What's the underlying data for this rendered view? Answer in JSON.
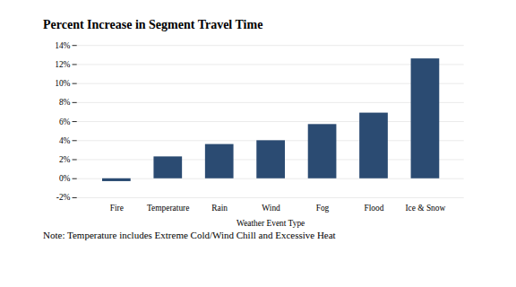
{
  "chart_data": {
    "type": "bar",
    "title": "Percent Increase in Segment Travel Time",
    "xlabel": "Weather Event Type",
    "note": "Note: Temperature includes Extreme Cold/Wind Chill and Excessive Heat",
    "categories": [
      "Fire",
      "Temperature",
      "Rain",
      "Wind",
      "Fog",
      "Flood",
      "Ice & Snow"
    ],
    "values": [
      -0.3,
      2.3,
      3.6,
      4.0,
      5.7,
      6.9,
      12.6
    ],
    "color": "#2b4b72",
    "ylim": [
      -2,
      14
    ],
    "yticks": [
      {
        "value": -2,
        "label": "-2%"
      },
      {
        "value": 0,
        "label": "0%"
      },
      {
        "value": 2,
        "label": "2%"
      },
      {
        "value": 4,
        "label": "4%"
      },
      {
        "value": 6,
        "label": "6%"
      },
      {
        "value": 8,
        "label": "8%"
      },
      {
        "value": 10,
        "label": "10%"
      },
      {
        "value": 12,
        "label": "12%"
      },
      {
        "value": 14,
        "label": "14%"
      }
    ],
    "grid": true
  }
}
